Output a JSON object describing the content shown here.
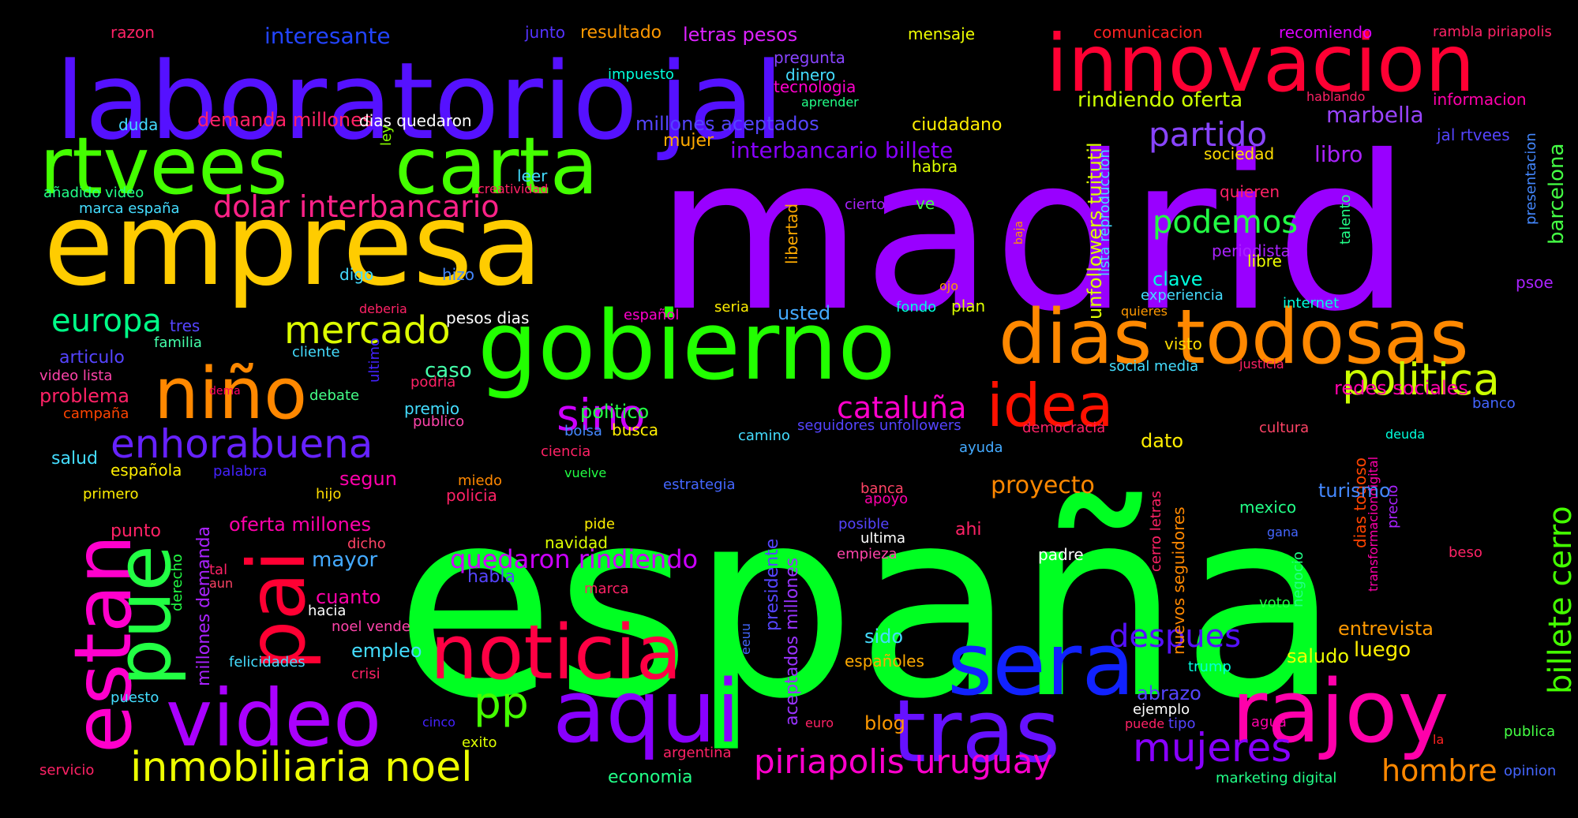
{
  "words": [
    {
      "text": "españa",
      "color": "#00ff22"
    },
    {
      "text": "madrid",
      "color": "#9900ff"
    },
    {
      "text": "empresa",
      "color": "#ffcc00"
    },
    {
      "text": "laboratorio",
      "color": "#5511ff"
    },
    {
      "text": "jal",
      "color": "#5511ff"
    },
    {
      "text": "gobierno",
      "color": "#22ff00"
    },
    {
      "text": "innovacion",
      "color": "#ff0033"
    },
    {
      "text": "rtvees",
      "color": "#44ff00"
    },
    {
      "text": "carta",
      "color": "#44ff00"
    },
    {
      "text": "dias todosas",
      "color": "#ff8800"
    },
    {
      "text": "rajoy",
      "color": "#ff00aa"
    },
    {
      "text": "sera",
      "color": "#1122ff"
    },
    {
      "text": "tras",
      "color": "#6611ff"
    },
    {
      "text": "aqui",
      "color": "#8800ff"
    },
    {
      "text": "noticia",
      "color": "#ff0044"
    },
    {
      "text": "video",
      "color": "#aa00ff"
    },
    {
      "text": "niño",
      "color": "#ff8800"
    },
    {
      "text": "pai",
      "color": "#ff0033"
    },
    {
      "text": "estan",
      "color": "#ff00cc"
    },
    {
      "text": "pue",
      "color": "#22ff44"
    },
    {
      "text": "idea",
      "color": "#ff1100"
    },
    {
      "text": "politica",
      "color": "#ccff00"
    },
    {
      "text": "mercado",
      "color": "#ddff00"
    },
    {
      "text": "enhorabuena",
      "color": "#6622ff"
    },
    {
      "text": "inmobiliaria noel",
      "color": "#eeff00"
    },
    {
      "text": "piriapolis uruguay",
      "color": "#ff00cc"
    },
    {
      "text": "mujeres",
      "color": "#8800ff"
    },
    {
      "text": "pp",
      "color": "#44ff00"
    },
    {
      "text": "sino",
      "color": "#cc00ff"
    },
    {
      "text": "partido",
      "color": "#8844ff"
    },
    {
      "text": "podemos",
      "color": "#22ff44"
    },
    {
      "text": "dolar interbancario",
      "color": "#ff2288"
    },
    {
      "text": "europa",
      "color": "#00ff88"
    },
    {
      "text": "cataluña",
      "color": "#ff00cc"
    },
    {
      "text": "despues",
      "color": "#5511ff"
    },
    {
      "text": "hombre",
      "color": "#ff8800"
    },
    {
      "text": "billete cerro",
      "color": "#44ff00"
    },
    {
      "text": "quedaron rindiendo",
      "color": "#cc00ff"
    },
    {
      "text": "interbancario billete",
      "color": "#8800ff"
    },
    {
      "text": "rindiendo oferta",
      "color": "#ccff00"
    },
    {
      "text": "proyecto",
      "color": "#ff8800"
    },
    {
      "text": "marbella",
      "color": "#9944ff"
    },
    {
      "text": "libro",
      "color": "#aa22ff"
    },
    {
      "text": "millones aceptados",
      "color": "#5544ff"
    },
    {
      "text": "demanda millones",
      "color": "#ff2266"
    },
    {
      "text": "interesante",
      "color": "#2244ff"
    },
    {
      "text": "letras pesos",
      "color": "#dd22ff"
    },
    {
      "text": "resultado",
      "color": "#ff9900"
    },
    {
      "text": "junto",
      "color": "#5533ff"
    },
    {
      "text": "razon",
      "color": "#ff2266"
    },
    {
      "text": "mensaje",
      "color": "#eeff00"
    },
    {
      "text": "comunicacion",
      "color": "#ff2222"
    },
    {
      "text": "recomiendo",
      "color": "#dd00ff"
    },
    {
      "text": "rambla piriapolis",
      "color": "#ff2266"
    },
    {
      "text": "pregunta",
      "color": "#8844ff"
    },
    {
      "text": "impuesto",
      "color": "#00ffdd"
    },
    {
      "text": "dinero",
      "color": "#44ddff"
    },
    {
      "text": "tecnologia",
      "color": "#ff00cc"
    },
    {
      "text": "aprender",
      "color": "#22ff88"
    },
    {
      "text": "hablando",
      "color": "#ff2266"
    },
    {
      "text": "informacion",
      "color": "#ff00aa"
    },
    {
      "text": "jal rtvees",
      "color": "#5544ff"
    },
    {
      "text": "presentacion",
      "color": "#4488ff"
    },
    {
      "text": "barcelona",
      "color": "#44ff44"
    },
    {
      "text": "duda",
      "color": "#44ddff"
    },
    {
      "text": "ley",
      "color": "#88ff00"
    },
    {
      "text": "dias quedaron",
      "color": "#ffffff"
    },
    {
      "text": "mujer",
      "color": "#ffaa00"
    },
    {
      "text": "ciudadano",
      "color": "#ffee00"
    },
    {
      "text": "habra",
      "color": "#ddff00"
    },
    {
      "text": "sociedad",
      "color": "#ffdd00"
    },
    {
      "text": "leer",
      "color": "#44ddff"
    },
    {
      "text": "añadido video",
      "color": "#22ff88"
    },
    {
      "text": "creatividad",
      "color": "#ff2266"
    },
    {
      "text": "marca españa",
      "color": "#44ddff"
    },
    {
      "text": "unfollowers tuitutil",
      "color": "#ddff00"
    },
    {
      "text": "lista reproduccion",
      "color": "#44ddff"
    },
    {
      "text": "libertad",
      "color": "#ffaa00"
    },
    {
      "text": "quieren",
      "color": "#ff2266"
    },
    {
      "text": "talento",
      "color": "#22ff88"
    },
    {
      "text": "cierto",
      "color": "#aa22ff"
    },
    {
      "text": "ve",
      "color": "#44ff44"
    },
    {
      "text": "baja",
      "color": "#ff9900"
    },
    {
      "text": "periodista",
      "color": "#aa22ff"
    },
    {
      "text": "libre",
      "color": "#eeff00"
    },
    {
      "text": "psoe",
      "color": "#aa22ff"
    },
    {
      "text": "digo",
      "color": "#44ddff"
    },
    {
      "text": "hizo",
      "color": "#4488ff"
    },
    {
      "text": "clave",
      "color": "#00ffdd"
    },
    {
      "text": "experiencia",
      "color": "#44ddff"
    },
    {
      "text": "internet",
      "color": "#00ffdd"
    },
    {
      "text": "deberia",
      "color": "#ff2266"
    },
    {
      "text": "seria",
      "color": "#ffee00"
    },
    {
      "text": "español",
      "color": "#ff00cc"
    },
    {
      "text": "fondo",
      "color": "#00ffdd"
    },
    {
      "text": "plan",
      "color": "#ddff00"
    },
    {
      "text": "ojo",
      "color": "#ff9900"
    },
    {
      "text": "quieres",
      "color": "#ff9900"
    },
    {
      "text": "tres",
      "color": "#5544ff"
    },
    {
      "text": "familia",
      "color": "#44ffaa"
    },
    {
      "text": "pesos dias",
      "color": "#ffffff"
    },
    {
      "text": "usted",
      "color": "#44aaff"
    },
    {
      "text": "visto",
      "color": "#ffdd00"
    },
    {
      "text": "articulo",
      "color": "#5544ff"
    },
    {
      "text": "cliente",
      "color": "#44ddff"
    },
    {
      "text": "ultimo",
      "color": "#4422ff"
    },
    {
      "text": "social media",
      "color": "#44ddff"
    },
    {
      "text": "justicia",
      "color": "#ff2266"
    },
    {
      "text": "video lista",
      "color": "#ff44aa"
    },
    {
      "text": "podria",
      "color": "#ff2266"
    },
    {
      "text": "caso",
      "color": "#44ffaa"
    },
    {
      "text": "problema",
      "color": "#ff2266"
    },
    {
      "text": "campaña",
      "color": "#ff4400"
    },
    {
      "text": "dema",
      "color": "#ff0066"
    },
    {
      "text": "debate",
      "color": "#44ff88"
    },
    {
      "text": "premio",
      "color": "#44ddff"
    },
    {
      "text": "politico",
      "color": "#22ff44"
    },
    {
      "text": "publico",
      "color": "#ff44aa"
    },
    {
      "text": "seguidores unfollowers",
      "color": "#5544ff"
    },
    {
      "text": "democracia",
      "color": "#ff2266"
    },
    {
      "text": "cultura",
      "color": "#ff4466"
    },
    {
      "text": "redes sociales",
      "color": "#ff00aa"
    },
    {
      "text": "banco",
      "color": "#4466ff"
    },
    {
      "text": "salud",
      "color": "#44ddff"
    },
    {
      "text": "bolsa",
      "color": "#4488ff"
    },
    {
      "text": "busca",
      "color": "#ffee00"
    },
    {
      "text": "camino",
      "color": "#44ddff"
    },
    {
      "text": "ayuda",
      "color": "#44aaff"
    },
    {
      "text": "dato",
      "color": "#ffee00"
    },
    {
      "text": "deuda",
      "color": "#00ffdd"
    },
    {
      "text": "española",
      "color": "#ffee00"
    },
    {
      "text": "palabra",
      "color": "#4422ff"
    },
    {
      "text": "segun",
      "color": "#ff00aa"
    },
    {
      "text": "ciencia",
      "color": "#ff2266"
    },
    {
      "text": "vuelve",
      "color": "#22ff44"
    },
    {
      "text": "transformaciondigital",
      "color": "#ff00aa"
    },
    {
      "text": "primero",
      "color": "#ffee00"
    },
    {
      "text": "hijo",
      "color": "#ffdd00"
    },
    {
      "text": "miedo",
      "color": "#ff8800"
    },
    {
      "text": "policia",
      "color": "#ff2266"
    },
    {
      "text": "estrategia",
      "color": "#4466ff"
    },
    {
      "text": "banca",
      "color": "#ff4466"
    },
    {
      "text": "apoyo",
      "color": "#ff00aa"
    },
    {
      "text": "cerro letras",
      "color": "#ff2266"
    },
    {
      "text": "nuevos seguidores",
      "color": "#ff8800"
    },
    {
      "text": "mexico",
      "color": "#22ff88"
    },
    {
      "text": "dias todoso",
      "color": "#ff4400"
    },
    {
      "text": "precio",
      "color": "#aa22ff"
    },
    {
      "text": "turismo",
      "color": "#4488ff"
    },
    {
      "text": "punto",
      "color": "#ff2266"
    },
    {
      "text": "oferta millones",
      "color": "#ff00aa"
    },
    {
      "text": "presidente",
      "color": "#5544ff"
    },
    {
      "text": "aceptados millones",
      "color": "#9933ff"
    },
    {
      "text": "posible",
      "color": "#5544ff"
    },
    {
      "text": "ultima",
      "color": "#ffffff"
    },
    {
      "text": "ahi",
      "color": "#ff2266"
    },
    {
      "text": "pide",
      "color": "#ffee00"
    },
    {
      "text": "gana",
      "color": "#4466ff"
    },
    {
      "text": "beso",
      "color": "#ff2266"
    },
    {
      "text": "navidad",
      "color": "#ddff00"
    },
    {
      "text": "habla",
      "color": "#5544ff"
    },
    {
      "text": "marca",
      "color": "#ff2266"
    },
    {
      "text": "empieza",
      "color": "#ff44aa"
    },
    {
      "text": "padre",
      "color": "#ffffff"
    },
    {
      "text": "negocio",
      "color": "#22ff88"
    },
    {
      "text": "voto",
      "color": "#22ff44"
    },
    {
      "text": "mayor",
      "color": "#44aaff"
    },
    {
      "text": "derecho",
      "color": "#22ff44"
    },
    {
      "text": "tal",
      "color": "#ff2266"
    },
    {
      "text": "aun",
      "color": "#ff4466"
    },
    {
      "text": "dicho",
      "color": "#ff4466"
    },
    {
      "text": "millones demanda",
      "color": "#aa22ff"
    },
    {
      "text": "cuanto",
      "color": "#ff00aa"
    },
    {
      "text": "hacia",
      "color": "#ffffff"
    },
    {
      "text": "noel vende",
      "color": "#ff44aa"
    },
    {
      "text": "entrevista",
      "color": "#ff9900"
    },
    {
      "text": "luego",
      "color": "#ffee00"
    },
    {
      "text": "sido",
      "color": "#44ddff"
    },
    {
      "text": "saludo",
      "color": "#eeff00"
    },
    {
      "text": "empleo",
      "color": "#44ddff"
    },
    {
      "text": "felicidades",
      "color": "#44ddff"
    },
    {
      "text": "crisi",
      "color": "#ff2266"
    },
    {
      "text": "eeuu",
      "color": "#4466ff"
    },
    {
      "text": "españoles",
      "color": "#ffaa00"
    },
    {
      "text": "trump",
      "color": "#00ffdd"
    },
    {
      "text": "puesto",
      "color": "#44ddff"
    },
    {
      "text": "abrazo",
      "color": "#5544ff"
    },
    {
      "text": "blog",
      "color": "#ff9900"
    },
    {
      "text": "euro",
      "color": "#ff2266"
    },
    {
      "text": "ejemplo",
      "color": "#ffffff"
    },
    {
      "text": "puede",
      "color": "#ff2266"
    },
    {
      "text": "tipo",
      "color": "#5544ff"
    },
    {
      "text": "agua",
      "color": "#ff00aa"
    },
    {
      "text": "publica",
      "color": "#44ff44"
    },
    {
      "text": "cinco",
      "color": "#4422ff"
    },
    {
      "text": "exito",
      "color": "#ddff00"
    },
    {
      "text": "argentina",
      "color": "#ff2266"
    },
    {
      "text": "la",
      "color": "#ff2222"
    },
    {
      "text": "opinion",
      "color": "#4466ff"
    },
    {
      "text": "servicio",
      "color": "#ff2266"
    },
    {
      "text": "economia",
      "color": "#22ff88"
    },
    {
      "text": "marketing digital",
      "color": "#22ff88"
    }
  ]
}
